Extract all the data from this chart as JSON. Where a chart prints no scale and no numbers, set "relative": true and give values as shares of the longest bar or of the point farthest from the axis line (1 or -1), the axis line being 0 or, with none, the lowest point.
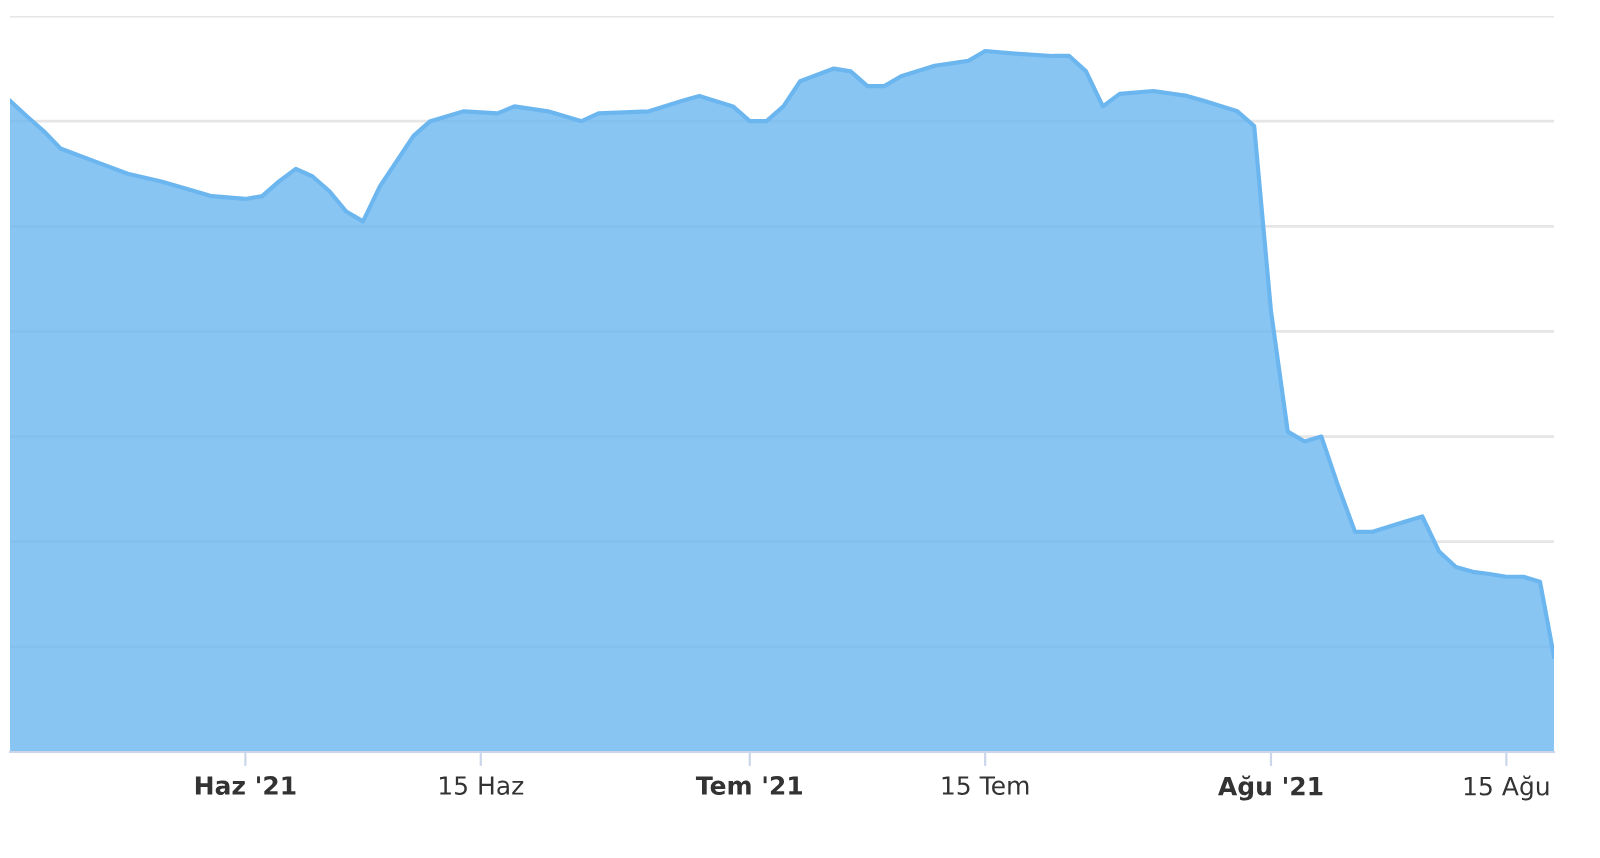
{
  "chart_data": {
    "type": "area",
    "relative": true,
    "grid": "y",
    "legend": false,
    "xlim": [
      "2021-05-18",
      "2021-08-17T20:00"
    ],
    "xticks": [
      {
        "value": "2021-06-01",
        "label": "Haz '21"
      },
      {
        "value": "2021-06-15",
        "label": "15 Haz"
      },
      {
        "value": "2021-07-01",
        "label": "Tem '21"
      },
      {
        "value": "2021-07-15",
        "label": "15 Tem"
      },
      {
        "value": "2021-08-01",
        "label": "Ağu '21"
      },
      {
        "value": "2021-08-15",
        "label": "15 Ağu"
      }
    ],
    "x": [
      "2021-05-18",
      "2021-05-19",
      "2021-05-20",
      "2021-05-21",
      "2021-05-23",
      "2021-05-25",
      "2021-05-27",
      "2021-05-29",
      "2021-05-30",
      "2021-06-01",
      "2021-06-02",
      "2021-06-03",
      "2021-06-04",
      "2021-06-05",
      "2021-06-06",
      "2021-06-07",
      "2021-06-08",
      "2021-06-09",
      "2021-06-10",
      "2021-06-11",
      "2021-06-12",
      "2021-06-14",
      "2021-06-16",
      "2021-06-17",
      "2021-06-19",
      "2021-06-21",
      "2021-06-22",
      "2021-06-25",
      "2021-06-27",
      "2021-06-28",
      "2021-06-30",
      "2021-07-01",
      "2021-07-02",
      "2021-07-03",
      "2021-07-04",
      "2021-07-06",
      "2021-07-07",
      "2021-07-08",
      "2021-07-09",
      "2021-07-10",
      "2021-07-12",
      "2021-07-14",
      "2021-07-15",
      "2021-07-17",
      "2021-07-19",
      "2021-07-20",
      "2021-07-21",
      "2021-07-22",
      "2021-07-23",
      "2021-07-25",
      "2021-07-27",
      "2021-07-28",
      "2021-07-30",
      "2021-07-31",
      "2021-08-01",
      "2021-08-02",
      "2021-08-03",
      "2021-08-04",
      "2021-08-05",
      "2021-08-06",
      "2021-08-07",
      "2021-08-09",
      "2021-08-10",
      "2021-08-11",
      "2021-08-12",
      "2021-08-13",
      "2021-08-14",
      "2021-08-15",
      "2021-08-16",
      "2021-08-17",
      "2021-08-17T20:00"
    ],
    "series": [
      {
        "color": "#6cb6f0",
        "values": [
          0.929,
          0.907,
          0.886,
          0.861,
          0.843,
          0.825,
          0.814,
          0.8,
          0.793,
          0.789,
          0.793,
          0.814,
          0.832,
          0.821,
          0.8,
          0.771,
          0.757,
          0.807,
          0.843,
          0.879,
          0.9,
          0.914,
          0.911,
          0.921,
          0.914,
          0.9,
          0.911,
          0.914,
          0.929,
          0.936,
          0.921,
          0.9,
          0.9,
          0.921,
          0.957,
          0.975,
          0.971,
          0.95,
          0.95,
          0.964,
          0.979,
          0.986,
          1,
          0.996,
          0.993,
          0.993,
          0.971,
          0.921,
          0.939,
          0.943,
          0.936,
          0.929,
          0.914,
          0.893,
          0.629,
          0.457,
          0.443,
          0.45,
          0.379,
          0.314,
          0.314,
          0.329,
          0.336,
          0.286,
          0.264,
          0.257,
          0.254,
          0.25,
          0.25,
          0.243,
          0.136
        ]
      }
    ]
  }
}
